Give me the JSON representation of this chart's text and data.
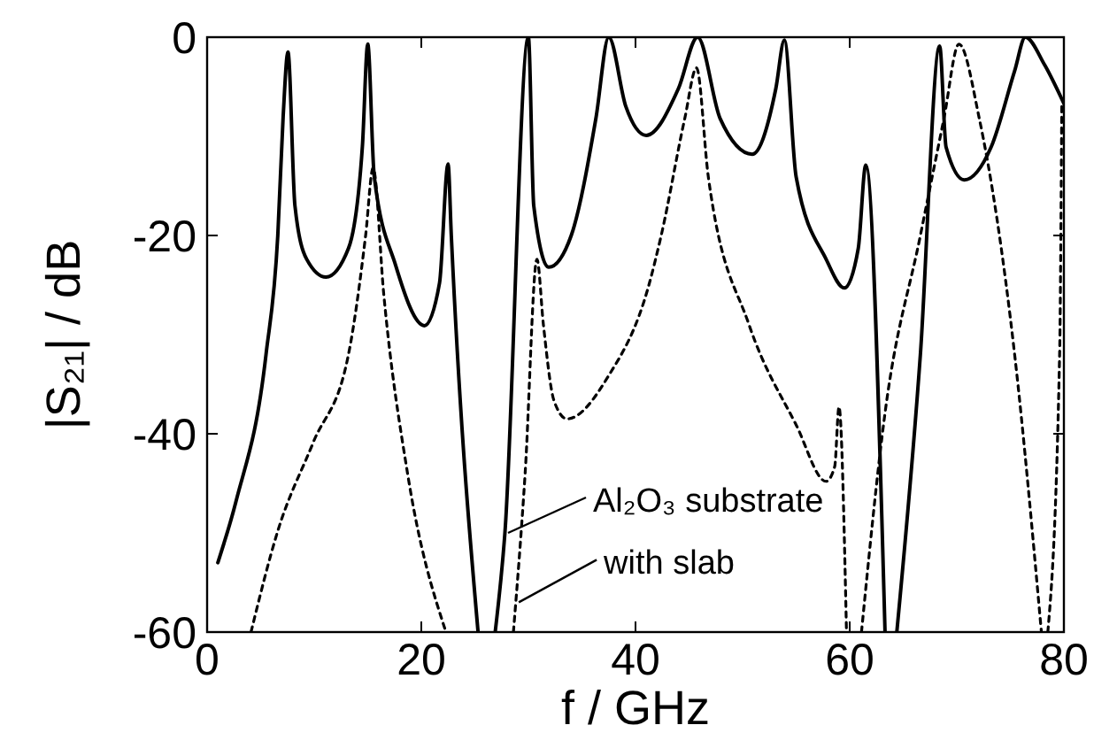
{
  "chart_data": {
    "type": "line",
    "xlabel": "f / GHz",
    "ylabel": "|S₂₁| / dB",
    "xlim": [
      0,
      80
    ],
    "ylim": [
      -60,
      0
    ],
    "xticks": [
      0,
      20,
      40,
      60,
      80
    ],
    "yticks": [
      -60,
      -40,
      -20,
      0
    ],
    "grid": false,
    "series": [
      {
        "color": "#000000",
        "line_style": "solid",
        "x": [
          1.0,
          2.7,
          5.5,
          6.6,
          7.1,
          7.55,
          8.2,
          9.3,
          11.1,
          13.2,
          14.5,
          15.0,
          15.6,
          17.6,
          20.3,
          21.7,
          22.5,
          22.8,
          25.3,
          25.31,
          26.9,
          27.8,
          30.0,
          30.5,
          31.9,
          34.0,
          36.3,
          37.5,
          39.1,
          41.0,
          44.0,
          45.8,
          47.9,
          50.9,
          53.1,
          53.9,
          55.0,
          57.8,
          59.5,
          60.8,
          61.5,
          63.3,
          63.31,
          64.4,
          66.6,
          68.4,
          69.0,
          70.7,
          73.2,
          75.4,
          76.4,
          78.2,
          80
        ],
        "values": [
          -53,
          -46.8,
          -32,
          -20,
          -8,
          -1.5,
          -17,
          -22.4,
          -24.2,
          -21.3,
          -11,
          -0.7,
          -14,
          -23,
          -29.1,
          -24.8,
          -12.8,
          -20,
          -60,
          null,
          -60,
          -50.1,
          0,
          -17,
          -23.2,
          -20,
          -8.2,
          0,
          -7,
          -9.9,
          -5.2,
          0,
          -8.2,
          -11.8,
          -5.2,
          -0.3,
          -14.1,
          -22.4,
          -25.3,
          -21.3,
          -12.9,
          -60,
          null,
          -60,
          -32,
          -0.9,
          -11.1,
          -14.4,
          -11.1,
          -3.4,
          0,
          -2.8,
          -6.7
        ]
      },
      {
        "color": "#000000",
        "line_style": "dotted",
        "x": [
          4.1,
          6.6,
          9.9,
          13.2,
          14.8,
          15.5,
          16.5,
          18.7,
          22.3,
          22.31,
          28.6,
          29.7,
          30.8,
          31.4,
          32.4,
          33.6,
          37.4,
          41.3,
          42.4,
          44.6,
          45.7,
          46.8,
          50.6,
          55.0,
          57.8,
          58.6,
          59.0,
          59.7,
          59.71,
          61.1,
          63.3,
          66.6,
          68.8,
          70.2,
          72.1,
          75.4,
          77.9,
          77.91,
          78.5,
          79.6,
          79.8
        ],
        "values": [
          -60,
          -49.8,
          -40.9,
          -32,
          -20,
          -13.2,
          -26,
          -43.9,
          -60,
          null,
          -60,
          -43.9,
          -22.4,
          -29,
          -36.7,
          -38.5,
          -34.3,
          -24.8,
          -20,
          -8.2,
          -3.1,
          -14.1,
          -29,
          -39.1,
          -44.8,
          -43.3,
          -37.3,
          -60,
          null,
          -60,
          -37.9,
          -20,
          -8.2,
          -0.7,
          -8.2,
          -32,
          -60,
          null,
          -60,
          -32,
          -7
        ]
      }
    ],
    "annotations": [
      {
        "text": "Al₂O₃ substrate",
        "x": 28.1,
        "y": -50
      },
      {
        "text": "with slab",
        "x": 29.1,
        "y": -57
      }
    ]
  }
}
